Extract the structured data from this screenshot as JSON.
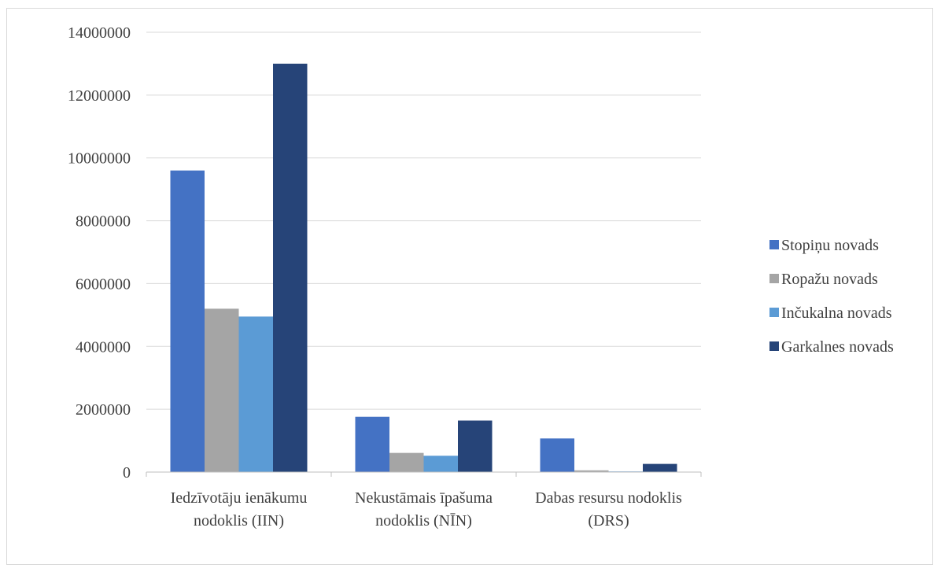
{
  "chart_data": {
    "type": "bar",
    "categories": [
      [
        "Iedzīvotāju ienākumu",
        "nodoklis (IIN)"
      ],
      [
        "Nekustāmais īpašuma",
        "nodoklis (NĪN)"
      ],
      [
        "Dabas resursu nodoklis",
        "(DRS)"
      ]
    ],
    "series": [
      {
        "name": "Stopiņu novads",
        "color": "#4472C4",
        "values": [
          9600000,
          1760000,
          1070000
        ]
      },
      {
        "name": "Ropažu novads",
        "color": "#A5A5A5",
        "values": [
          5200000,
          610000,
          55000
        ]
      },
      {
        "name": "Inčukalna novads",
        "color": "#5B9BD5",
        "values": [
          4950000,
          520000,
          20000
        ]
      },
      {
        "name": "Garkalnes novads",
        "color": "#264478",
        "values": [
          13000000,
          1640000,
          260000
        ]
      }
    ],
    "yticks": [
      "0",
      "2000000",
      "4000000",
      "6000000",
      "8000000",
      "10000000",
      "12000000",
      "14000000"
    ],
    "ylim": [
      0,
      14000000
    ],
    "grid": true,
    "legend_position": "right"
  }
}
